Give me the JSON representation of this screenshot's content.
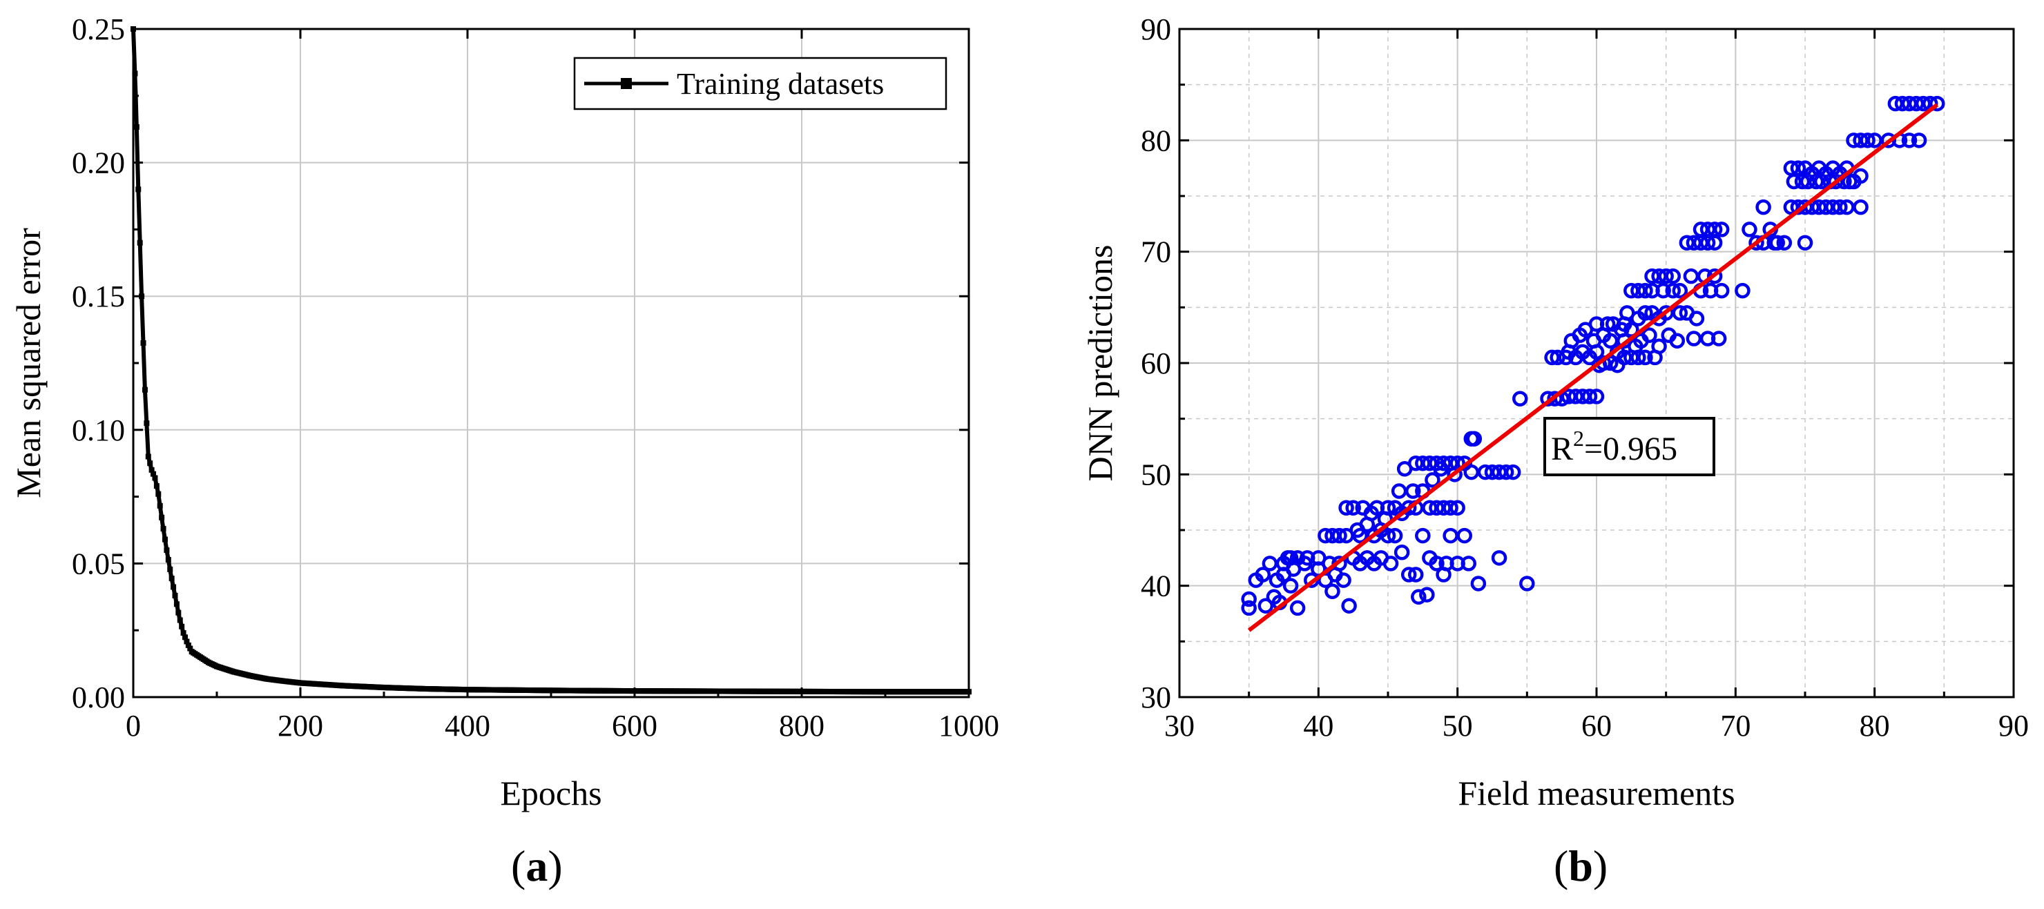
{
  "charts": {
    "a": {
      "panel_label": "a",
      "xlabel": "Epochs",
      "ylabel": "Mean squared error",
      "legend": "Training datasets",
      "xticks": [
        "0",
        "200",
        "400",
        "600",
        "800",
        "1000"
      ],
      "yticks": [
        "0.00",
        "0.05",
        "0.10",
        "0.15",
        "0.20",
        "0.25"
      ]
    },
    "b": {
      "panel_label": "b",
      "xlabel": "Field measurements",
      "ylabel": "DNN predictions",
      "r2_base": "R",
      "r2_sup": "2",
      "r2_value": "=0.965",
      "xticks": [
        "30",
        "40",
        "50",
        "60",
        "70",
        "80",
        "90"
      ],
      "yticks": [
        "30",
        "40",
        "50",
        "60",
        "70",
        "80",
        "90"
      ]
    }
  },
  "chart_data": [
    {
      "type": "line",
      "xlabel": "Epochs",
      "ylabel": "Mean squared error",
      "xlim": [
        0,
        1000
      ],
      "ylim": [
        0,
        0.25
      ],
      "grid": true,
      "legend_position": "top-right",
      "series": [
        {
          "name": "Training datasets",
          "color": "#000000",
          "marker": "square",
          "x": [
            0,
            3,
            6,
            10,
            14,
            18,
            22,
            26,
            30,
            35,
            40,
            45,
            50,
            55,
            60,
            65,
            70,
            75,
            80,
            90,
            100,
            120,
            140,
            160,
            180,
            200,
            250,
            300,
            350,
            400,
            500,
            600,
            700,
            800,
            900,
            1000
          ],
          "y": [
            0.25,
            0.225,
            0.19,
            0.15,
            0.115,
            0.09,
            0.085,
            0.082,
            0.076,
            0.065,
            0.055,
            0.046,
            0.038,
            0.03,
            0.024,
            0.02,
            0.017,
            0.016,
            0.015,
            0.013,
            0.0115,
            0.0095,
            0.008,
            0.0068,
            0.006,
            0.0053,
            0.0043,
            0.0036,
            0.0031,
            0.0028,
            0.0025,
            0.0023,
            0.0022,
            0.0021,
            0.002,
            0.002
          ]
        }
      ]
    },
    {
      "type": "scatter",
      "xlabel": "Field measurements",
      "ylabel": "DNN predictions",
      "xlim": [
        30,
        90
      ],
      "ylim": [
        30,
        90
      ],
      "grid": true,
      "marker_color": "#0000ee",
      "fit_line_color": "#ee0000",
      "annotation": "R2=0.965",
      "fit_line": {
        "x": [
          35,
          84.5
        ],
        "y": [
          36,
          83.2
        ]
      },
      "points": [
        [
          35.0,
          38.0
        ],
        [
          35.0,
          38.8
        ],
        [
          35.5,
          40.5
        ],
        [
          36.0,
          41.0
        ],
        [
          36.2,
          38.2
        ],
        [
          36.5,
          42.0
        ],
        [
          36.8,
          39.0
        ],
        [
          37.0,
          40.5
        ],
        [
          37.2,
          38.5
        ],
        [
          37.5,
          42.0
        ],
        [
          37.5,
          41.0
        ],
        [
          37.8,
          42.5
        ],
        [
          38.0,
          40.0
        ],
        [
          38.0,
          42.5
        ],
        [
          38.2,
          41.5
        ],
        [
          38.5,
          42.5
        ],
        [
          38.5,
          38.0
        ],
        [
          39.0,
          42.0
        ],
        [
          39.2,
          42.5
        ],
        [
          39.5,
          40.5
        ],
        [
          40.0,
          42.5
        ],
        [
          40.0,
          41.5
        ],
        [
          40.5,
          44.5
        ],
        [
          40.5,
          40.5
        ],
        [
          40.8,
          42.0
        ],
        [
          41.0,
          44.5
        ],
        [
          41.0,
          39.5
        ],
        [
          41.2,
          41.0
        ],
        [
          41.5,
          44.5
        ],
        [
          41.5,
          42.0
        ],
        [
          41.8,
          40.5
        ],
        [
          42.0,
          47.0
        ],
        [
          42.0,
          44.5
        ],
        [
          42.2,
          38.2
        ],
        [
          42.5,
          42.5
        ],
        [
          42.5,
          47.0
        ],
        [
          42.8,
          45.0
        ],
        [
          43.0,
          44.5
        ],
        [
          43.0,
          42.0
        ],
        [
          43.2,
          47.0
        ],
        [
          43.5,
          45.5
        ],
        [
          43.5,
          42.5
        ],
        [
          43.8,
          46.5
        ],
        [
          44.0,
          44.5
        ],
        [
          44.0,
          42.0
        ],
        [
          44.2,
          47.0
        ],
        [
          44.5,
          45.0
        ],
        [
          44.5,
          42.5
        ],
        [
          44.8,
          46.0
        ],
        [
          45.0,
          47.0
        ],
        [
          45.0,
          44.5
        ],
        [
          45.2,
          42.0
        ],
        [
          45.5,
          47.0
        ],
        [
          45.5,
          44.5
        ],
        [
          45.8,
          48.5
        ],
        [
          46.0,
          46.5
        ],
        [
          46.0,
          43.0
        ],
        [
          46.2,
          50.5
        ],
        [
          46.5,
          47.0
        ],
        [
          46.5,
          41.0
        ],
        [
          46.8,
          48.5
        ],
        [
          47.0,
          51.0
        ],
        [
          47.0,
          47.0
        ],
        [
          47.0,
          41.0
        ],
        [
          47.2,
          39.0
        ],
        [
          47.5,
          51.0
        ],
        [
          47.5,
          48.5
        ],
        [
          47.5,
          44.5
        ],
        [
          47.8,
          39.2
        ],
        [
          48.0,
          51.0
        ],
        [
          48.0,
          47.0
        ],
        [
          48.0,
          42.5
        ],
        [
          48.2,
          49.5
        ],
        [
          48.5,
          51.0
        ],
        [
          48.5,
          47.0
        ],
        [
          48.5,
          42.0
        ],
        [
          48.8,
          50.5
        ],
        [
          49.0,
          51.0
        ],
        [
          49.0,
          47.0
        ],
        [
          49.0,
          41.0
        ],
        [
          49.2,
          42.0
        ],
        [
          49.5,
          51.0
        ],
        [
          49.5,
          47.0
        ],
        [
          49.5,
          44.5
        ],
        [
          49.8,
          50.0
        ],
        [
          50.0,
          51.0
        ],
        [
          50.0,
          47.0
        ],
        [
          50.0,
          42.0
        ],
        [
          50.5,
          51.0
        ],
        [
          50.5,
          44.5
        ],
        [
          50.8,
          42.0
        ],
        [
          51.0,
          53.2
        ],
        [
          51.0,
          50.2
        ],
        [
          51.2,
          53.2
        ],
        [
          51.5,
          40.2
        ],
        [
          52.0,
          50.2
        ],
        [
          52.5,
          50.2
        ],
        [
          53.0,
          42.5
        ],
        [
          53.0,
          50.2
        ],
        [
          53.5,
          50.2
        ],
        [
          54.0,
          50.2
        ],
        [
          54.5,
          56.8
        ],
        [
          55.0,
          40.2
        ],
        [
          56.5,
          56.8
        ],
        [
          56.8,
          60.5
        ],
        [
          57.0,
          56.8
        ],
        [
          57.2,
          60.5
        ],
        [
          57.5,
          56.8
        ],
        [
          57.8,
          60.5
        ],
        [
          58.0,
          61.0
        ],
        [
          58.0,
          57.0
        ],
        [
          58.2,
          62.0
        ],
        [
          58.5,
          60.5
        ],
        [
          58.5,
          57.0
        ],
        [
          58.8,
          62.5
        ],
        [
          59.0,
          61.0
        ],
        [
          59.0,
          57.0
        ],
        [
          59.2,
          63.0
        ],
        [
          59.5,
          60.5
        ],
        [
          59.5,
          57.0
        ],
        [
          59.8,
          62.0
        ],
        [
          60.0,
          63.5
        ],
        [
          60.0,
          61.0
        ],
        [
          60.0,
          57.0
        ],
        [
          60.2,
          59.8
        ],
        [
          60.5,
          62.5
        ],
        [
          60.5,
          60.0
        ],
        [
          60.8,
          63.5
        ],
        [
          61.0,
          62.0
        ],
        [
          61.0,
          60.0
        ],
        [
          61.2,
          63.5
        ],
        [
          61.5,
          61.0
        ],
        [
          61.5,
          59.8
        ],
        [
          61.8,
          63.0
        ],
        [
          62.0,
          63.5
        ],
        [
          62.0,
          62.0
        ],
        [
          62.0,
          60.5
        ],
        [
          62.2,
          64.5
        ],
        [
          62.5,
          66.5
        ],
        [
          62.5,
          63.0
        ],
        [
          62.5,
          60.5
        ],
        [
          62.8,
          61.5
        ],
        [
          63.0,
          66.5
        ],
        [
          63.0,
          64.0
        ],
        [
          63.0,
          60.5
        ],
        [
          63.2,
          62.0
        ],
        [
          63.5,
          66.5
        ],
        [
          63.5,
          64.5
        ],
        [
          63.5,
          60.5
        ],
        [
          63.8,
          62.5
        ],
        [
          64.0,
          67.8
        ],
        [
          64.0,
          66.5
        ],
        [
          64.0,
          64.5
        ],
        [
          64.2,
          60.5
        ],
        [
          64.5,
          67.8
        ],
        [
          64.5,
          64.0
        ],
        [
          64.5,
          61.5
        ],
        [
          64.8,
          66.5
        ],
        [
          65.0,
          67.8
        ],
        [
          65.0,
          64.5
        ],
        [
          65.2,
          62.5
        ],
        [
          65.5,
          67.8
        ],
        [
          65.5,
          66.5
        ],
        [
          65.8,
          62.0
        ],
        [
          66.0,
          66.5
        ],
        [
          66.0,
          64.5
        ],
        [
          66.5,
          70.8
        ],
        [
          66.5,
          64.5
        ],
        [
          66.8,
          67.8
        ],
        [
          67.0,
          70.8
        ],
        [
          67.0,
          62.2
        ],
        [
          67.2,
          64.0
        ],
        [
          67.5,
          72.0
        ],
        [
          67.5,
          70.8
        ],
        [
          67.5,
          66.5
        ],
        [
          67.8,
          67.8
        ],
        [
          68.0,
          72.0
        ],
        [
          68.0,
          70.8
        ],
        [
          68.0,
          62.2
        ],
        [
          68.2,
          66.5
        ],
        [
          68.5,
          72.0
        ],
        [
          68.5,
          70.8
        ],
        [
          68.5,
          67.8
        ],
        [
          68.8,
          62.2
        ],
        [
          69.0,
          72.0
        ],
        [
          69.0,
          66.5
        ],
        [
          70.5,
          66.5
        ],
        [
          71.0,
          72.0
        ],
        [
          71.5,
          70.8
        ],
        [
          72.0,
          74.0
        ],
        [
          72.0,
          70.8
        ],
        [
          72.5,
          72.0
        ],
        [
          72.8,
          70.8
        ],
        [
          73.0,
          70.8
        ],
        [
          73.5,
          70.8
        ],
        [
          74.0,
          74.0
        ],
        [
          74.0,
          77.5
        ],
        [
          74.2,
          76.3
        ],
        [
          74.5,
          74.0
        ],
        [
          74.5,
          77.5
        ],
        [
          74.8,
          76.3
        ],
        [
          75.0,
          74.0
        ],
        [
          75.0,
          77.5
        ],
        [
          75.0,
          70.8
        ],
        [
          75.2,
          76.3
        ],
        [
          75.5,
          74.0
        ],
        [
          75.5,
          77.0
        ],
        [
          75.8,
          76.3
        ],
        [
          76.0,
          74.0
        ],
        [
          76.0,
          77.5
        ],
        [
          76.2,
          76.3
        ],
        [
          76.5,
          74.0
        ],
        [
          76.5,
          77.0
        ],
        [
          76.8,
          76.3
        ],
        [
          77.0,
          74.0
        ],
        [
          77.0,
          77.5
        ],
        [
          77.2,
          76.3
        ],
        [
          77.5,
          74.0
        ],
        [
          77.5,
          77.0
        ],
        [
          77.8,
          76.3
        ],
        [
          78.0,
          74.0
        ],
        [
          78.0,
          77.5
        ],
        [
          78.2,
          76.3
        ],
        [
          78.5,
          80.0
        ],
        [
          78.5,
          76.3
        ],
        [
          79.0,
          80.0
        ],
        [
          79.0,
          74.0
        ],
        [
          79.0,
          76.8
        ],
        [
          79.5,
          80.0
        ],
        [
          80.0,
          80.0
        ],
        [
          81.0,
          80.0
        ],
        [
          81.5,
          83.3
        ],
        [
          81.8,
          80.0
        ],
        [
          82.0,
          83.3
        ],
        [
          82.5,
          80.0
        ],
        [
          82.5,
          83.3
        ],
        [
          83.0,
          83.3
        ],
        [
          83.2,
          80.0
        ],
        [
          83.5,
          83.3
        ],
        [
          84.0,
          83.3
        ],
        [
          84.5,
          83.3
        ]
      ]
    }
  ]
}
